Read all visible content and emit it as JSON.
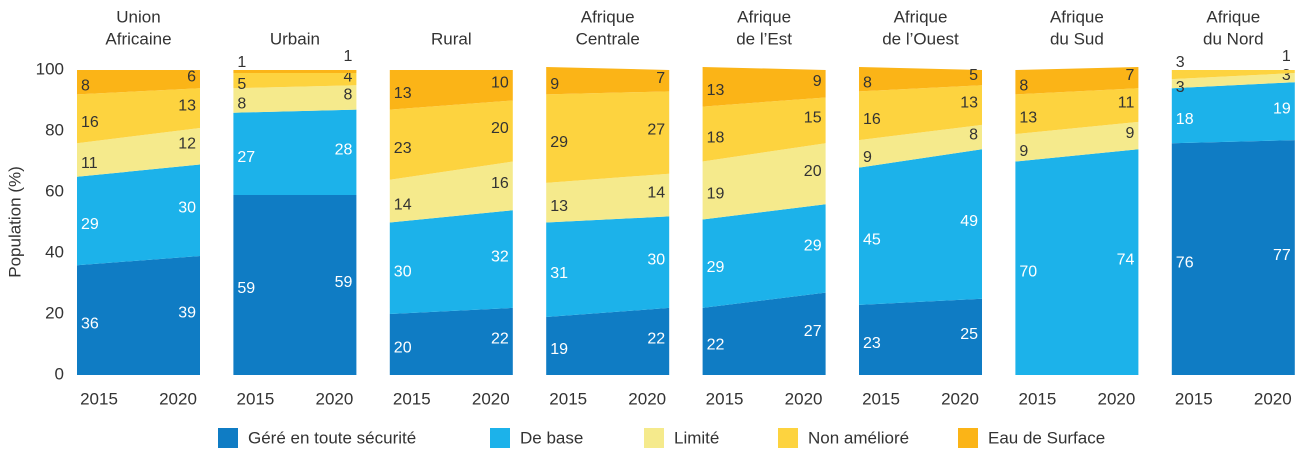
{
  "chart_data": {
    "type": "stacked_area",
    "ylabel": "Population (%)",
    "ylim": [
      0,
      100
    ],
    "yticks": [
      0,
      20,
      40,
      60,
      80,
      100
    ],
    "series": [
      {
        "name": "Géré en toute sécurité",
        "color": "#0f7cc4"
      },
      {
        "name": "De base",
        "color": "#1cb2ea"
      },
      {
        "name": "Limité",
        "color": "#f5ea8c"
      },
      {
        "name": "Non amélioré",
        "color": "#fdd33f"
      },
      {
        "name": "Eau de Surface",
        "color": "#fbb417"
      }
    ],
    "panels": [
      {
        "title": [
          "Union",
          "Africaine"
        ],
        "categories": [
          "2015",
          "2020"
        ],
        "values": [
          [
            36,
            39
          ],
          [
            29,
            30
          ],
          [
            11,
            12
          ],
          [
            16,
            13
          ],
          [
            8,
            6
          ]
        ]
      },
      {
        "title": [
          "Urbain"
        ],
        "categories": [
          "2015",
          "2020"
        ],
        "values": [
          [
            59,
            59
          ],
          [
            27,
            28
          ],
          [
            8,
            8
          ],
          [
            5,
            4
          ],
          [
            1,
            1
          ]
        ]
      },
      {
        "title": [
          "Rural"
        ],
        "categories": [
          "2015",
          "2020"
        ],
        "values": [
          [
            20,
            22
          ],
          [
            30,
            32
          ],
          [
            14,
            16
          ],
          [
            23,
            20
          ],
          [
            13,
            10
          ]
        ]
      },
      {
        "title": [
          "Afrique",
          "Centrale"
        ],
        "categories": [
          "2015",
          "2020"
        ],
        "values": [
          [
            19,
            22
          ],
          [
            31,
            30
          ],
          [
            13,
            14
          ],
          [
            29,
            27
          ],
          [
            9,
            7
          ]
        ]
      },
      {
        "title": [
          "Afrique",
          "de l’Est"
        ],
        "categories": [
          "2015",
          "2020"
        ],
        "values": [
          [
            22,
            27
          ],
          [
            29,
            29
          ],
          [
            19,
            20
          ],
          [
            18,
            15
          ],
          [
            13,
            9
          ]
        ]
      },
      {
        "title": [
          "Afrique",
          "de l’Ouest"
        ],
        "categories": [
          "2015",
          "2020"
        ],
        "values": [
          [
            23,
            25
          ],
          [
            45,
            49
          ],
          [
            9,
            8
          ],
          [
            16,
            13
          ],
          [
            8,
            5
          ]
        ]
      },
      {
        "title": [
          "Afrique",
          "du Sud"
        ],
        "categories": [
          "2015",
          "2020"
        ],
        "values": [
          [
            null,
            null
          ],
          [
            70,
            74
          ],
          [
            9,
            9
          ],
          [
            13,
            11
          ],
          [
            8,
            7
          ]
        ]
      },
      {
        "title": [
          "Afrique",
          "du Nord"
        ],
        "categories": [
          "2015",
          "2020"
        ],
        "values": [
          [
            76,
            77
          ],
          [
            18,
            19
          ],
          [
            3,
            3
          ],
          [
            3,
            1
          ],
          [
            null,
            null
          ]
        ]
      }
    ]
  }
}
